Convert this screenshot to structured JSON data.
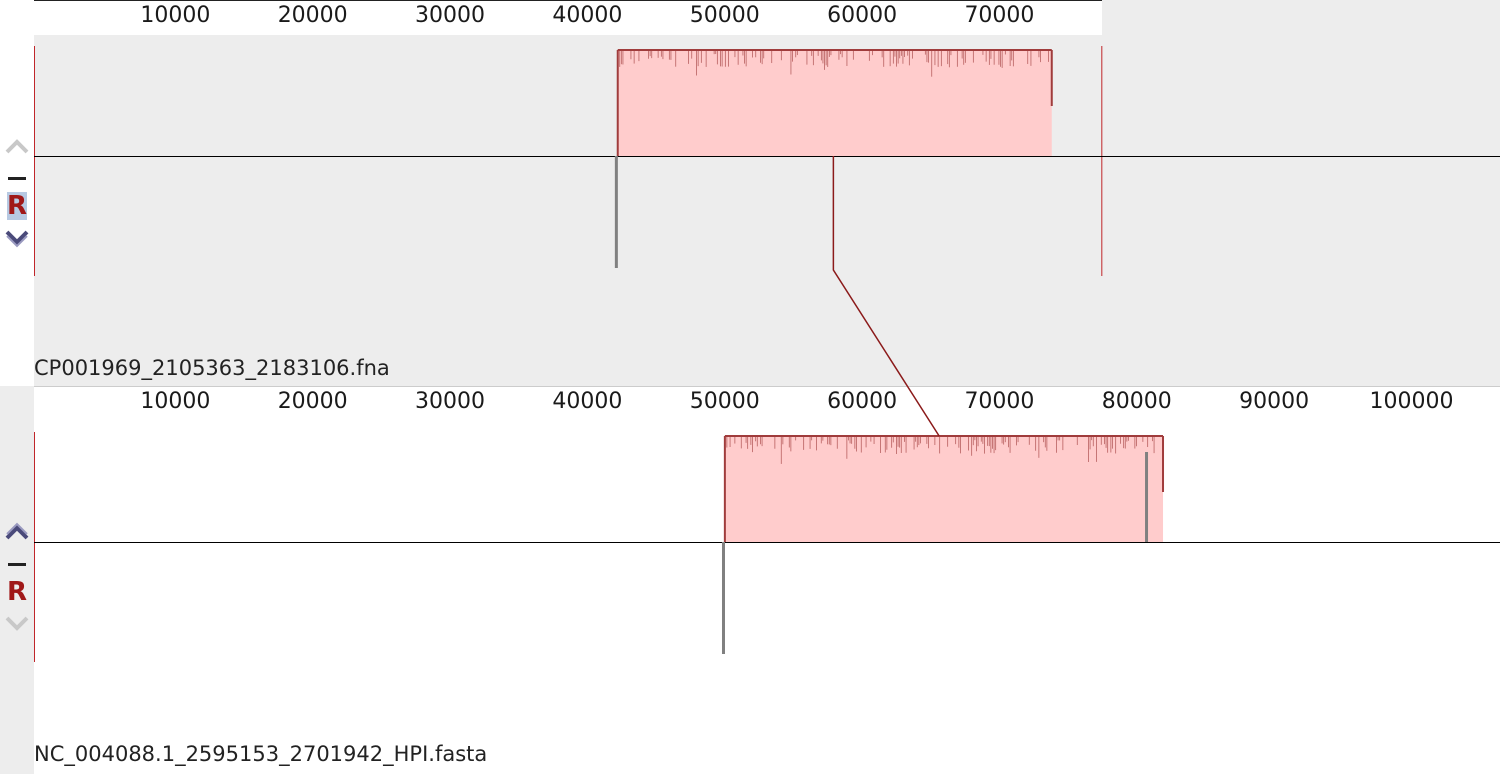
{
  "colors": {
    "panel_bg_selected": "#ededed",
    "panel_bg": "#ffffff",
    "lcb_fill": "#ffcccc",
    "lcb_stroke": "#a03c3c",
    "boundary": "#c0262a",
    "connector": "#8b1a1a",
    "gap": "#808080"
  },
  "connector": {
    "top_x": 58200,
    "bottom_x": 65900
  },
  "panels": [
    {
      "name": "CP001969_2105363_2183106.fna",
      "length": 77744,
      "ticks": [
        "10000",
        "20000",
        "30000",
        "40000",
        "50000",
        "60000",
        "70000"
      ],
      "selected": true,
      "lcb": {
        "start": 42500,
        "end": 74100
      },
      "gaps": [
        42400
      ],
      "controls": {
        "up": "chevron-up-icon",
        "minus": "minus-icon",
        "reverse": "R",
        "down": "chevron-down-icon"
      }
    },
    {
      "name": "NC_004088.1_2595153_2701942_HPI.fasta",
      "length": 106790,
      "ticks": [
        "10000",
        "20000",
        "30000",
        "40000",
        "50000",
        "60000",
        "70000",
        "80000",
        "90000",
        "100000"
      ],
      "selected": false,
      "lcb": {
        "start": 50300,
        "end": 82200
      },
      "gaps": [
        50200,
        81000
      ],
      "controls": {
        "up": "chevron-up-icon",
        "minus": "minus-icon",
        "reverse": "R",
        "down": "chevron-down-icon"
      }
    }
  ]
}
